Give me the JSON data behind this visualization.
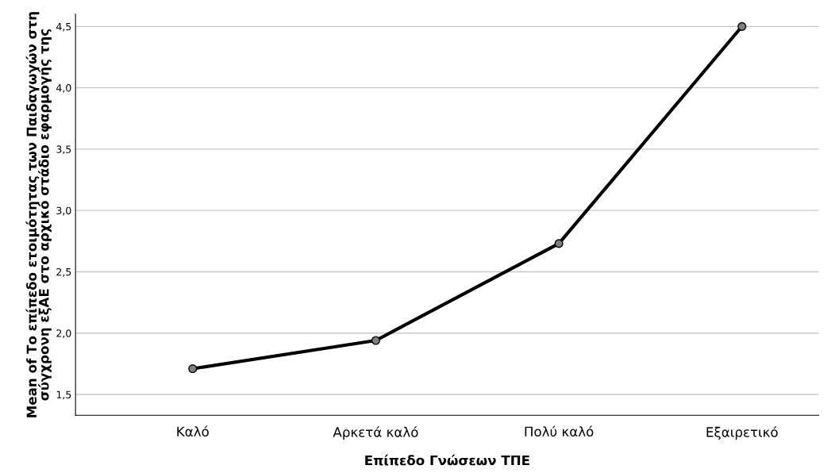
{
  "chart_data": {
    "type": "line",
    "xlabel": "Επίπεδο Γνώσεων ΤΠΕ",
    "ylabel": "Mean of Το επίπεδο ετοιμότητας των Παιδαγωγών στη\nσύγχρονη εξΑΕ στο αρχικό στάδιο εφαρμογής της",
    "categories": [
      "Καλό",
      "Αρκετά καλό",
      "Πολύ καλό",
      "Εξαιρετικό"
    ],
    "series": [
      {
        "color": "#000000",
        "values": [
          1.71,
          1.94,
          2.73,
          4.5
        ]
      }
    ],
    "ylim": [
      1.33,
      4.6
    ],
    "yticks": [
      {
        "value": 1.5,
        "label": "1,5"
      },
      {
        "value": 2.0,
        "label": "2,0"
      },
      {
        "value": 2.5,
        "label": "2,5"
      },
      {
        "value": 3.0,
        "label": "3,0"
      },
      {
        "value": 3.5,
        "label": "3,5"
      },
      {
        "value": 4.0,
        "label": "4,0"
      },
      {
        "value": 4.5,
        "label": "4,5"
      }
    ],
    "grid": "y",
    "marker": "circle",
    "line_style": "solid",
    "legend": false
  }
}
